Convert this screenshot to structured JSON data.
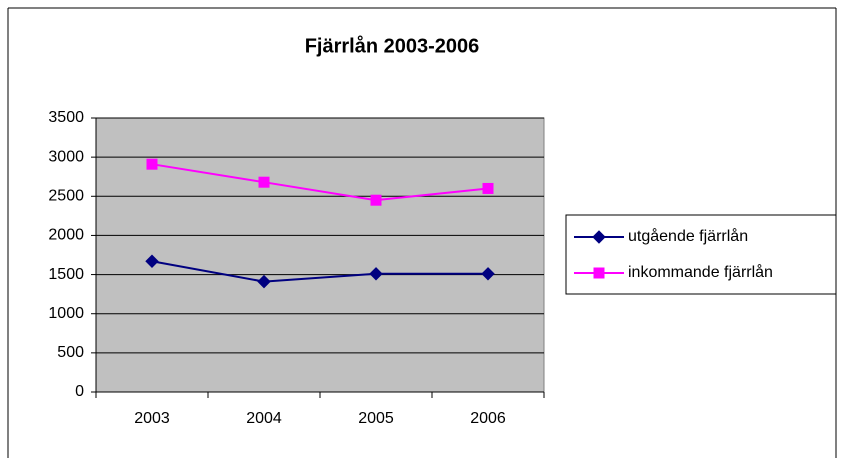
{
  "chart_data": {
    "type": "line",
    "title": "Fjärrlån 2003-2006",
    "categories": [
      "2003",
      "2004",
      "2005",
      "2006"
    ],
    "series": [
      {
        "name": "utgående fjärrlån",
        "color": "#000080",
        "marker": "diamond",
        "values": [
          1670,
          1410,
          1510,
          1510
        ]
      },
      {
        "name": "inkommande fjärrlån",
        "color": "#ff00ff",
        "marker": "square",
        "values": [
          2910,
          2680,
          2450,
          2600
        ]
      }
    ],
    "ylim": [
      0,
      3500
    ],
    "yticks": [
      0,
      500,
      1000,
      1500,
      2000,
      2500,
      3000,
      3500
    ],
    "grid": true,
    "legend": "right"
  }
}
